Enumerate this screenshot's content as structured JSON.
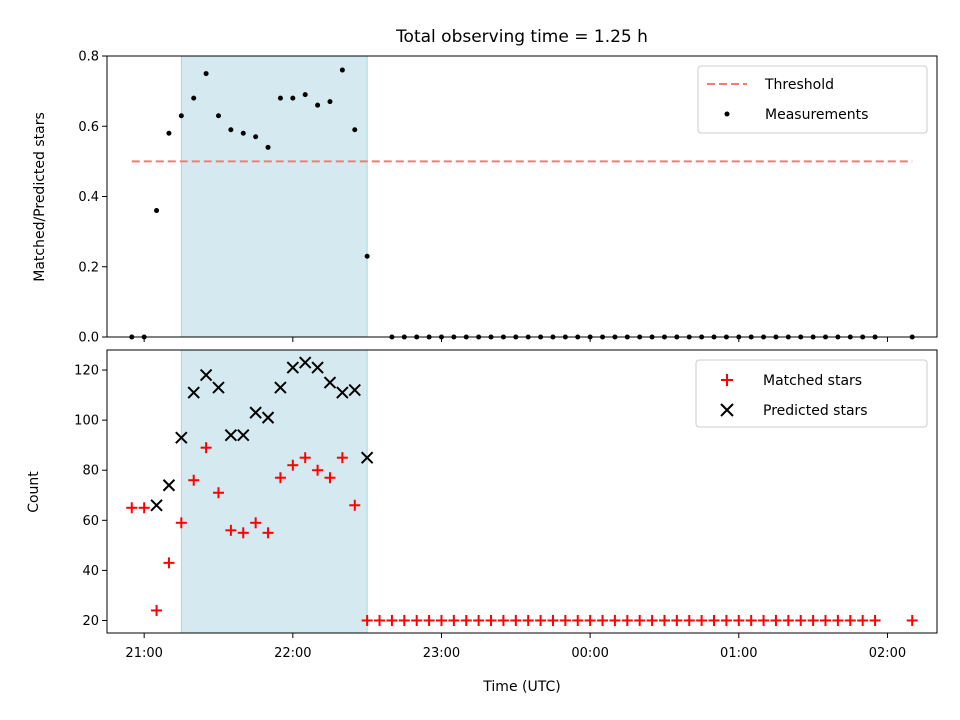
{
  "chart_data": [
    {
      "type": "scatter",
      "title": "Total observing time = 1.25 h",
      "ylabel": "Matched/Predicted stars",
      "ylim": [
        0,
        0.8
      ],
      "yticks": [
        "0.0",
        "0.2",
        "0.4",
        "0.6",
        "0.8"
      ],
      "threshold": {
        "name": "Threshold",
        "value": 0.5,
        "x_from": "20:55",
        "x_to": "02:10",
        "color": "#f47a7a"
      },
      "observing_window": {
        "from": "21:15",
        "to": "22:30",
        "color": "#d4eaf0"
      },
      "series": [
        {
          "name": "Measurements",
          "color": "#000000",
          "points": [
            [
              "20:55",
              0.0
            ],
            [
              "21:00",
              0.0
            ],
            [
              "21:05",
              0.36
            ],
            [
              "21:10",
              0.58
            ],
            [
              "21:15",
              0.63
            ],
            [
              "21:20",
              0.68
            ],
            [
              "21:25",
              0.75
            ],
            [
              "21:30",
              0.63
            ],
            [
              "21:35",
              0.59
            ],
            [
              "21:40",
              0.58
            ],
            [
              "21:45",
              0.57
            ],
            [
              "21:50",
              0.54
            ],
            [
              "21:55",
              0.68
            ],
            [
              "22:00",
              0.68
            ],
            [
              "22:05",
              0.69
            ],
            [
              "22:10",
              0.66
            ],
            [
              "22:15",
              0.67
            ],
            [
              "22:20",
              0.76
            ],
            [
              "22:25",
              0.59
            ],
            [
              "22:30",
              0.23
            ],
            [
              "22:40",
              0.0
            ],
            [
              "22:45",
              0.0
            ],
            [
              "22:50",
              0.0
            ],
            [
              "22:55",
              0.0
            ],
            [
              "23:00",
              0.0
            ],
            [
              "23:05",
              0.0
            ],
            [
              "23:10",
              0.0
            ],
            [
              "23:15",
              0.0
            ],
            [
              "23:20",
              0.0
            ],
            [
              "23:25",
              0.0
            ],
            [
              "23:30",
              0.0
            ],
            [
              "23:35",
              0.0
            ],
            [
              "23:40",
              0.0
            ],
            [
              "23:45",
              0.0
            ],
            [
              "23:50",
              0.0
            ],
            [
              "23:55",
              0.0
            ],
            [
              "00:00",
              0.0
            ],
            [
              "00:05",
              0.0
            ],
            [
              "00:10",
              0.0
            ],
            [
              "00:15",
              0.0
            ],
            [
              "00:20",
              0.0
            ],
            [
              "00:25",
              0.0
            ],
            [
              "00:30",
              0.0
            ],
            [
              "00:35",
              0.0
            ],
            [
              "00:40",
              0.0
            ],
            [
              "00:45",
              0.0
            ],
            [
              "00:50",
              0.0
            ],
            [
              "00:55",
              0.0
            ],
            [
              "01:00",
              0.0
            ],
            [
              "01:05",
              0.0
            ],
            [
              "01:10",
              0.0
            ],
            [
              "01:15",
              0.0
            ],
            [
              "01:20",
              0.0
            ],
            [
              "01:25",
              0.0
            ],
            [
              "01:30",
              0.0
            ],
            [
              "01:35",
              0.0
            ],
            [
              "01:40",
              0.0
            ],
            [
              "01:45",
              0.0
            ],
            [
              "01:50",
              0.0
            ],
            [
              "01:55",
              0.0
            ],
            [
              "02:10",
              0.0
            ]
          ]
        }
      ],
      "legend": "upper right"
    },
    {
      "type": "scatter",
      "xlabel": "Time (UTC)",
      "ylabel": "Count",
      "ylim": [
        15,
        128
      ],
      "yticks": [
        "20",
        "40",
        "60",
        "80",
        "100",
        "120"
      ],
      "xticks": [
        "21:00",
        "22:00",
        "23:00",
        "00:00",
        "01:00",
        "02:00"
      ],
      "xrange": [
        "20:45",
        "02:20"
      ],
      "observing_window": {
        "from": "21:15",
        "to": "22:30",
        "color": "#d4eaf0"
      },
      "series": [
        {
          "name": "Matched stars",
          "marker": "+",
          "color": "#ff0000",
          "points": [
            [
              "20:55",
              65
            ],
            [
              "21:00",
              65
            ],
            [
              "21:05",
              24
            ],
            [
              "21:10",
              43
            ],
            [
              "21:15",
              59
            ],
            [
              "21:20",
              76
            ],
            [
              "21:25",
              89
            ],
            [
              "21:30",
              71
            ],
            [
              "21:35",
              56
            ],
            [
              "21:40",
              55
            ],
            [
              "21:45",
              59
            ],
            [
              "21:50",
              55
            ],
            [
              "21:55",
              77
            ],
            [
              "22:00",
              82
            ],
            [
              "22:05",
              85
            ],
            [
              "22:10",
              80
            ],
            [
              "22:15",
              77
            ],
            [
              "22:20",
              85
            ],
            [
              "22:25",
              66
            ],
            [
              "22:30",
              20
            ],
            [
              "22:35",
              20
            ],
            [
              "22:40",
              20
            ],
            [
              "22:45",
              20
            ],
            [
              "22:50",
              20
            ],
            [
              "22:55",
              20
            ],
            [
              "23:00",
              20
            ],
            [
              "23:05",
              20
            ],
            [
              "23:10",
              20
            ],
            [
              "23:15",
              20
            ],
            [
              "23:20",
              20
            ],
            [
              "23:25",
              20
            ],
            [
              "23:30",
              20
            ],
            [
              "23:35",
              20
            ],
            [
              "23:40",
              20
            ],
            [
              "23:45",
              20
            ],
            [
              "23:50",
              20
            ],
            [
              "23:55",
              20
            ],
            [
              "00:00",
              20
            ],
            [
              "00:05",
              20
            ],
            [
              "00:10",
              20
            ],
            [
              "00:15",
              20
            ],
            [
              "00:20",
              20
            ],
            [
              "00:25",
              20
            ],
            [
              "00:30",
              20
            ],
            [
              "00:35",
              20
            ],
            [
              "00:40",
              20
            ],
            [
              "00:45",
              20
            ],
            [
              "00:50",
              20
            ],
            [
              "00:55",
              20
            ],
            [
              "01:00",
              20
            ],
            [
              "01:05",
              20
            ],
            [
              "01:10",
              20
            ],
            [
              "01:15",
              20
            ],
            [
              "01:20",
              20
            ],
            [
              "01:25",
              20
            ],
            [
              "01:30",
              20
            ],
            [
              "01:35",
              20
            ],
            [
              "01:40",
              20
            ],
            [
              "01:45",
              20
            ],
            [
              "01:50",
              20
            ],
            [
              "01:55",
              20
            ],
            [
              "02:10",
              20
            ]
          ]
        },
        {
          "name": "Predicted stars",
          "marker": "x",
          "color": "#000000",
          "points": [
            [
              "21:05",
              66
            ],
            [
              "21:10",
              74
            ],
            [
              "21:15",
              93
            ],
            [
              "21:20",
              111
            ],
            [
              "21:25",
              118
            ],
            [
              "21:30",
              113
            ],
            [
              "21:35",
              94
            ],
            [
              "21:40",
              94
            ],
            [
              "21:45",
              103
            ],
            [
              "21:50",
              101
            ],
            [
              "21:55",
              113
            ],
            [
              "22:00",
              121
            ],
            [
              "22:05",
              123
            ],
            [
              "22:10",
              121
            ],
            [
              "22:15",
              115
            ],
            [
              "22:20",
              111
            ],
            [
              "22:25",
              112
            ],
            [
              "22:30",
              85
            ]
          ]
        }
      ],
      "legend": "upper right"
    }
  ]
}
